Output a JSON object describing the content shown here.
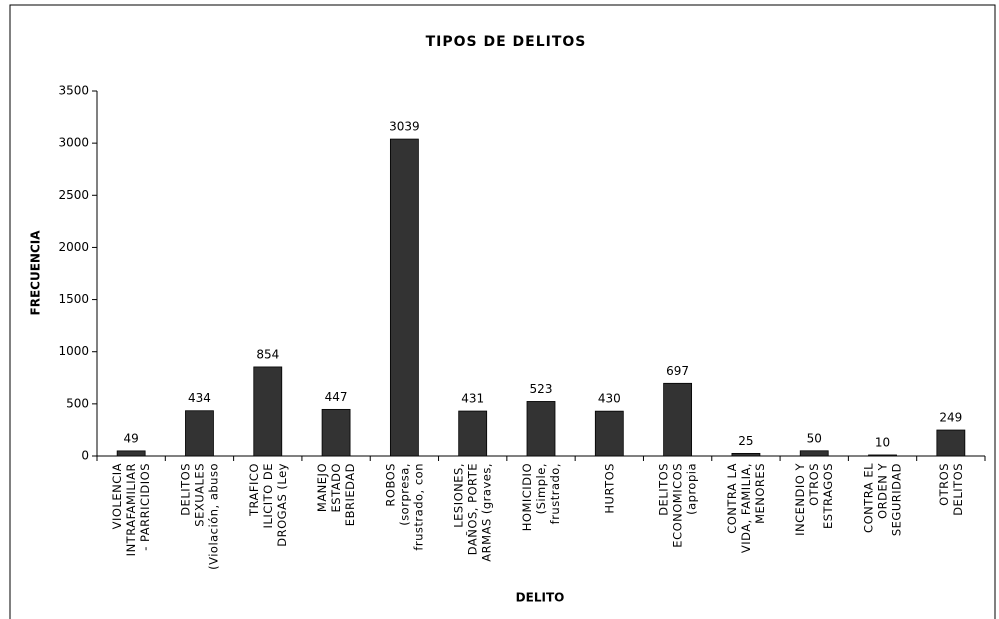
{
  "chart_data": {
    "type": "bar",
    "title": "TIPOS DE DELITOS",
    "x_label": "DELITO",
    "y_label": "FRECUENCIA",
    "categories": [
      "VIOLENCIA\nINTRAFAMILIAR\n- PARRICIDIOS",
      "DELITOS\nSEXUALES\n(Violación, abuso",
      "TRAFICO\nILICITO DE\nDROGAS (Ley",
      "MANEJO\nESTADO\nEBRIEDAD",
      "ROBOS\n(sorpresa,\nfrustrado, con",
      "LESIONES,\nDAÑOS, PORTE\nARMAS (graves,",
      "HOMICIDIO\n(Simple,\nfrustrado,",
      "HURTOS",
      "DELITOS\nECONOMICOS\n(apropia",
      "CONTRA LA\nVIDA, FAMILIA,\nMENORES",
      "INCENDIO Y\nOTROS\nESTRAGOS",
      "CONTRA EL\nORDEN Y\nSEGURIDAD",
      "OTROS\nDELITOS"
    ],
    "values": [
      49,
      434,
      854,
      447,
      3039,
      431,
      523,
      430,
      697,
      25,
      50,
      10,
      249
    ],
    "color": "#333333",
    "ylim": [
      0,
      3500
    ],
    "yticks": [
      0,
      500,
      1000,
      1500,
      2000,
      2500,
      3000,
      3500
    ],
    "grid": false
  }
}
